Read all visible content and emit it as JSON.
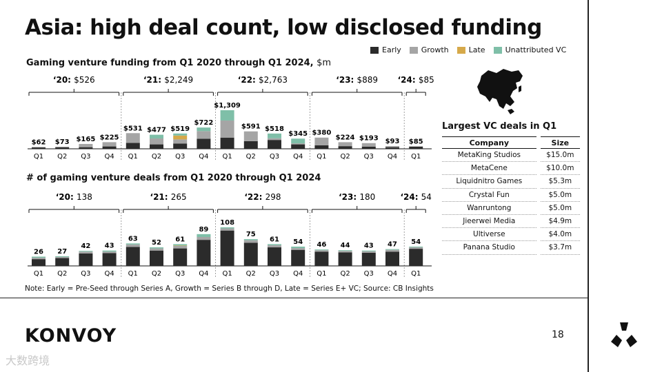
{
  "title": "Asia: high deal count, low disclosed funding",
  "legend": [
    {
      "label": "Early",
      "color": "#2b2b2b"
    },
    {
      "label": "Growth",
      "color": "#a5a5a5"
    },
    {
      "label": "Late",
      "color": "#d6a94a"
    },
    {
      "label": "Unattributed VC",
      "color": "#7fbfa8"
    }
  ],
  "chart_data": [
    {
      "type": "bar",
      "stacked": true,
      "title": "Gaming venture funding from Q1 2020 through Q1 2024,",
      "unit": "$m",
      "categories": [
        "Q1",
        "Q2",
        "Q3",
        "Q4",
        "Q1",
        "Q2",
        "Q3",
        "Q4",
        "Q1",
        "Q2",
        "Q3",
        "Q4",
        "Q1",
        "Q2",
        "Q3",
        "Q4",
        "Q1"
      ],
      "totals": [
        62,
        73,
        165,
        225,
        531,
        477,
        519,
        722,
        1309,
        591,
        518,
        345,
        380,
        224,
        193,
        93,
        85
      ],
      "total_labels": [
        "$62",
        "$73",
        "$165",
        "$225",
        "$531",
        "$477",
        "$519",
        "$722",
        "$1,309",
        "$591",
        "$518",
        "$345",
        "$380",
        "$224",
        "$193",
        "$93",
        "$85"
      ],
      "series": [
        {
          "name": "Early",
          "values": [
            45,
            50,
            55,
            80,
            200,
            150,
            180,
            340,
            380,
            260,
            300,
            150,
            120,
            90,
            75,
            55,
            70
          ]
        },
        {
          "name": "Growth",
          "values": [
            17,
            23,
            110,
            145,
            331,
            200,
            139,
            260,
            579,
            331,
            58,
            35,
            260,
            134,
            118,
            38,
            15
          ]
        },
        {
          "name": "Late",
          "values": [
            0,
            0,
            0,
            0,
            0,
            0,
            130,
            0,
            0,
            0,
            0,
            0,
            0,
            0,
            0,
            0,
            0
          ]
        },
        {
          "name": "Unattributed VC",
          "values": [
            0,
            0,
            0,
            0,
            0,
            127,
            70,
            122,
            350,
            0,
            160,
            160,
            0,
            0,
            0,
            0,
            0
          ]
        }
      ],
      "year_groups": [
        {
          "label": "‘20:",
          "value": "$526"
        },
        {
          "label": "‘21:",
          "value": "$2,249"
        },
        {
          "label": "‘22:",
          "value": "$2,763"
        },
        {
          "label": "‘23:",
          "value": "$889"
        },
        {
          "label": "‘24:",
          "value": "$85"
        }
      ]
    },
    {
      "type": "bar",
      "stacked": true,
      "title": "# of gaming venture deals from Q1 2020 through Q1 2024",
      "categories": [
        "Q1",
        "Q2",
        "Q3",
        "Q4",
        "Q1",
        "Q2",
        "Q3",
        "Q4",
        "Q1",
        "Q2",
        "Q3",
        "Q4",
        "Q1",
        "Q2",
        "Q3",
        "Q4",
        "Q1"
      ],
      "totals": [
        26,
        27,
        42,
        43,
        63,
        52,
        61,
        89,
        108,
        75,
        61,
        54,
        46,
        44,
        43,
        47,
        54
      ],
      "total_labels": [
        "26",
        "27",
        "42",
        "43",
        "63",
        "52",
        "61",
        "89",
        "108",
        "75",
        "61",
        "54",
        "46",
        "44",
        "43",
        "47",
        "54"
      ],
      "series": [
        {
          "name": "Early",
          "values": [
            19,
            22,
            35,
            36,
            53,
            43,
            49,
            73,
            99,
            65,
            52,
            45,
            40,
            38,
            37,
            40,
            48
          ]
        },
        {
          "name": "Growth",
          "values": [
            4,
            3,
            5,
            4,
            7,
            6,
            7,
            8,
            6,
            7,
            6,
            5,
            4,
            4,
            4,
            5,
            4
          ]
        },
        {
          "name": "Late",
          "values": [
            0,
            0,
            0,
            0,
            0,
            0,
            1,
            0,
            0,
            0,
            0,
            0,
            0,
            0,
            0,
            0,
            0
          ]
        },
        {
          "name": "Unattributed VC",
          "values": [
            3,
            2,
            2,
            3,
            3,
            3,
            4,
            8,
            3,
            3,
            3,
            4,
            2,
            2,
            2,
            2,
            2
          ]
        }
      ],
      "year_groups": [
        {
          "label": "‘20:",
          "value": "138"
        },
        {
          "label": "‘21:",
          "value": "265"
        },
        {
          "label": "‘22:",
          "value": "298"
        },
        {
          "label": "‘23:",
          "value": "180"
        },
        {
          "label": "‘24:",
          "value": "54"
        }
      ]
    }
  ],
  "deals_table": {
    "title": "Largest VC deals in Q1",
    "headers": [
      "Company",
      "Size"
    ],
    "rows": [
      [
        "MetaKing Studios",
        "$15.0m"
      ],
      [
        "MetaCene",
        "$10.0m"
      ],
      [
        "Liquidnitro Games",
        "$5.3m"
      ],
      [
        "Crystal Fun",
        "$5.0m"
      ],
      [
        "Wanruntong",
        "$5.0m"
      ],
      [
        "Jieerwei Media",
        "$4.9m"
      ],
      [
        "Ultiverse",
        "$4.0m"
      ],
      [
        "Panana Studio",
        "$3.7m"
      ]
    ]
  },
  "note": "Note: Early = Pre-Seed through Series A, Growth = Series B through D, Late = Series E+ VC; Source: CB Insights",
  "logo": "KONVOY",
  "page_number": "18",
  "watermark": "大数跨境"
}
